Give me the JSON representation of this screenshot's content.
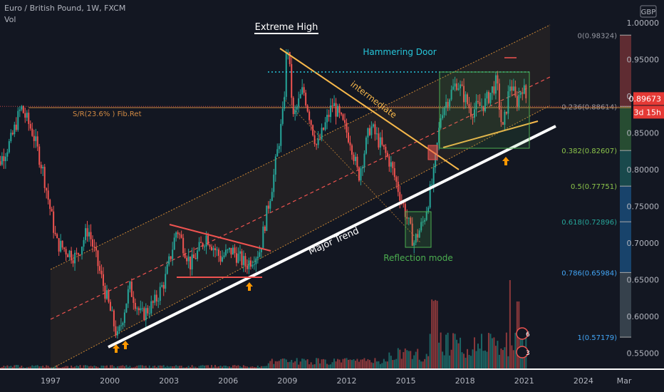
{
  "header": {
    "symbol": "Euro / British Pound, 1W, FXCM",
    "volume": "Vol"
  },
  "currency": "GBP",
  "colors": {
    "background": "#131722",
    "bull": "#26a69a",
    "bear": "#ef5350",
    "channel": "#f7a23a",
    "trend": "#ffffff",
    "fib_text": "#d18a43",
    "teal_text": "#26c6da",
    "green_text": "#4caf50",
    "price_badge": "#e53935",
    "axis_text": "#b2b5be"
  },
  "chart_data": {
    "type": "candlestick",
    "title": "Euro / British Pound, 1W, FXCM",
    "xlabel": "",
    "ylabel": "",
    "ylim": [
      0.53,
      1.005
    ],
    "x_ticks": [
      "1997",
      "2000",
      "2003",
      "2006",
      "2009",
      "2012",
      "2015",
      "2018",
      "2021",
      "2024",
      "Mar"
    ],
    "y_ticks": [
      "1.00000",
      "0.95000",
      "0.90000",
      "0.85000",
      "0.80000",
      "0.75000",
      "0.70000",
      "0.65000",
      "0.60000",
      "0.55000"
    ],
    "price_path": [
      {
        "year": 1994.0,
        "price": 0.79
      },
      {
        "year": 1995.0,
        "price": 0.84
      },
      {
        "year": 1995.5,
        "price": 0.885
      },
      {
        "year": 1996.1,
        "price": 0.85
      },
      {
        "year": 1996.6,
        "price": 0.8
      },
      {
        "year": 1997.3,
        "price": 0.7
      },
      {
        "year": 1998.3,
        "price": 0.68
      },
      {
        "year": 1998.9,
        "price": 0.72
      },
      {
        "year": 1999.7,
        "price": 0.64
      },
      {
        "year": 2000.4,
        "price": 0.57
      },
      {
        "year": 2001.0,
        "price": 0.64
      },
      {
        "year": 2001.6,
        "price": 0.6
      },
      {
        "year": 2002.3,
        "price": 0.62
      },
      {
        "year": 2002.8,
        "price": 0.65
      },
      {
        "year": 2003.4,
        "price": 0.72
      },
      {
        "year": 2004.1,
        "price": 0.67
      },
      {
        "year": 2004.9,
        "price": 0.71
      },
      {
        "year": 2005.6,
        "price": 0.68
      },
      {
        "year": 2006.2,
        "price": 0.69
      },
      {
        "year": 2006.9,
        "price": 0.67
      },
      {
        "year": 2007.6,
        "price": 0.69
      },
      {
        "year": 2008.3,
        "price": 0.79
      },
      {
        "year": 2008.8,
        "price": 0.88
      },
      {
        "year": 2008.99,
        "price": 0.98
      },
      {
        "year": 2009.3,
        "price": 0.87
      },
      {
        "year": 2009.8,
        "price": 0.91
      },
      {
        "year": 2010.5,
        "price": 0.83
      },
      {
        "year": 2011.3,
        "price": 0.89
      },
      {
        "year": 2012.2,
        "price": 0.84
      },
      {
        "year": 2012.6,
        "price": 0.79
      },
      {
        "year": 2013.2,
        "price": 0.86
      },
      {
        "year": 2014.2,
        "price": 0.81
      },
      {
        "year": 2015.0,
        "price": 0.74
      },
      {
        "year": 2015.4,
        "price": 0.7
      },
      {
        "year": 2015.9,
        "price": 0.73
      },
      {
        "year": 2016.4,
        "price": 0.79
      },
      {
        "year": 2016.8,
        "price": 0.88
      },
      {
        "year": 2017.6,
        "price": 0.92
      },
      {
        "year": 2018.3,
        "price": 0.88
      },
      {
        "year": 2019.0,
        "price": 0.89
      },
      {
        "year": 2019.6,
        "price": 0.92
      },
      {
        "year": 2019.9,
        "price": 0.85
      },
      {
        "year": 2020.3,
        "price": 0.92
      },
      {
        "year": 2020.6,
        "price": 0.89
      },
      {
        "year": 2020.9,
        "price": 0.915
      },
      {
        "year": 2021.1,
        "price": 0.897
      }
    ],
    "current_price": "0.89673",
    "countdown": "3d 15h",
    "fib_levels": [
      {
        "label": "0(0.98324)",
        "value": 0.98324
      },
      {
        "label": "0.236(0.88614)",
        "value": 0.88614
      },
      {
        "label": "0.382(0.82607)",
        "value": 0.82607
      },
      {
        "label": "0.5(0.77751)",
        "value": 0.77751
      },
      {
        "label": "0.618(0.72896)",
        "value": 0.72896
      },
      {
        "label": "0.786(0.65984)",
        "value": 0.65984
      },
      {
        "label": "1(0.57179)",
        "value": 0.57179
      }
    ],
    "annotations": [
      {
        "text": "Extreme High"
      },
      {
        "text": "Hammering Door"
      },
      {
        "text": "intermediate"
      },
      {
        "text": "S/R(23.6% ) Fib.Ret"
      },
      {
        "text": "Major Trend"
      },
      {
        "text": "Reflection mode"
      }
    ],
    "event_badges": [
      "6",
      "3"
    ],
    "grid": false
  }
}
